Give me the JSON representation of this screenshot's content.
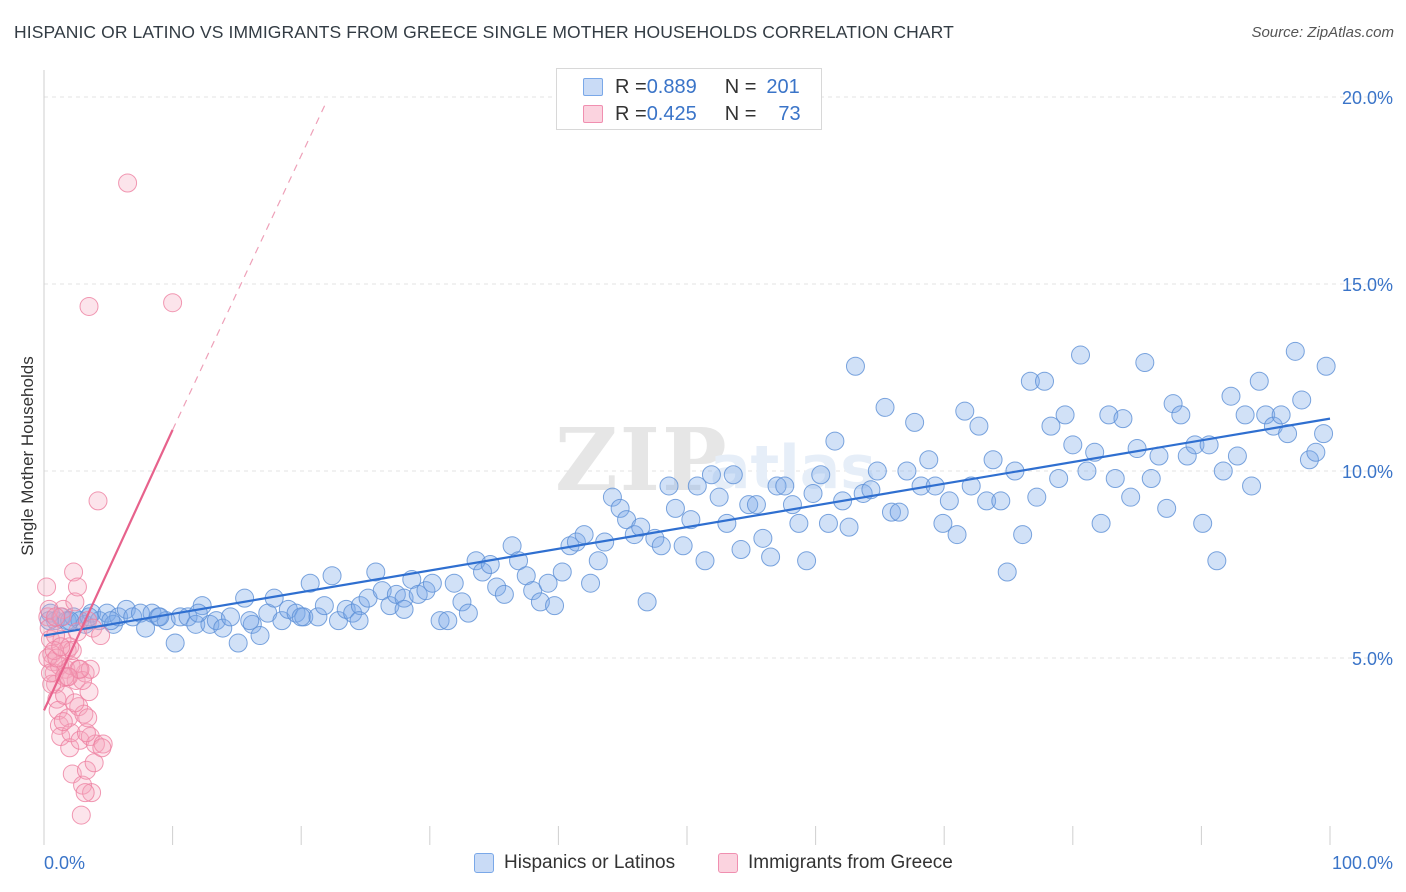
{
  "title": "HISPANIC OR LATINO VS IMMIGRANTS FROM GREECE SINGLE MOTHER HOUSEHOLDS CORRELATION CHART",
  "source": "Source: ZipAtlas.com",
  "watermark": "ZIPatlas",
  "legend": {
    "rows": [
      {
        "r_label": "R = ",
        "r_value": "0.889",
        "n_label": "N = ",
        "n_value": "201",
        "color": "#a9c6f0"
      },
      {
        "r_label": "R = ",
        "r_value": "0.425",
        "n_label": "N = ",
        "n_value": "73",
        "color": "#f5b5c8"
      }
    ]
  },
  "bottom_legend": {
    "items": [
      {
        "label": "Hispanics or Latinos",
        "color": "#a9c6f0"
      },
      {
        "label": "Immigrants from Greece",
        "color": "#f5b5c8"
      }
    ]
  },
  "chart_data": {
    "type": "scatter",
    "title": "HISPANIC OR LATINO VS IMMIGRANTS FROM GREECE SINGLE MOTHER HOUSEHOLDS CORRELATION CHART",
    "xlabel": "",
    "ylabel": "Single Mother Households",
    "xlim": [
      0,
      100
    ],
    "ylim": [
      0,
      20.5
    ],
    "x_tick_labels": [
      "0.0%",
      "100.0%"
    ],
    "y_ticks": [
      5,
      10,
      15,
      20
    ],
    "y_tick_labels": [
      "5.0%",
      "10.0%",
      "15.0%",
      "20.0%"
    ],
    "grid": true,
    "legend_position": "top-center",
    "series": [
      {
        "name": "Hispanics or Latinos",
        "color": "#7aa8e8",
        "stroke": "#5b8fd6",
        "trend": {
          "x": [
            0,
            100
          ],
          "y": [
            5.6,
            11.4
          ]
        },
        "points": [
          [
            0.5,
            6.2
          ],
          [
            0.9,
            6.0
          ],
          [
            1.3,
            6.1
          ],
          [
            1.8,
            6.0
          ],
          [
            2.3,
            6.1
          ],
          [
            2.8,
            6.0
          ],
          [
            3.2,
            5.9
          ],
          [
            3.7,
            6.2
          ],
          [
            4.3,
            6.0
          ],
          [
            4.9,
            6.2
          ],
          [
            5.4,
            5.9
          ],
          [
            5.8,
            6.1
          ],
          [
            6.4,
            6.3
          ],
          [
            6.9,
            6.1
          ],
          [
            7.5,
            6.2
          ],
          [
            7.9,
            5.8
          ],
          [
            8.4,
            6.2
          ],
          [
            8.9,
            6.1
          ],
          [
            9.5,
            6.0
          ],
          [
            10.2,
            5.4
          ],
          [
            10.6,
            6.1
          ],
          [
            11.2,
            6.1
          ],
          [
            11.8,
            5.9
          ],
          [
            12.3,
            6.4
          ],
          [
            12.9,
            5.9
          ],
          [
            13.4,
            6.0
          ],
          [
            13.9,
            5.8
          ],
          [
            14.5,
            6.1
          ],
          [
            15.1,
            5.4
          ],
          [
            15.6,
            6.6
          ],
          [
            16.2,
            5.9
          ],
          [
            16.8,
            5.6
          ],
          [
            17.4,
            6.2
          ],
          [
            17.9,
            6.6
          ],
          [
            18.5,
            6.0
          ],
          [
            19.0,
            6.3
          ],
          [
            19.6,
            6.2
          ],
          [
            20.2,
            6.1
          ],
          [
            20.7,
            7.0
          ],
          [
            21.3,
            6.1
          ],
          [
            21.8,
            6.4
          ],
          [
            22.4,
            7.2
          ],
          [
            22.9,
            6.0
          ],
          [
            23.5,
            6.3
          ],
          [
            24.0,
            6.2
          ],
          [
            24.6,
            6.4
          ],
          [
            25.2,
            6.6
          ],
          [
            25.8,
            7.3
          ],
          [
            26.3,
            6.8
          ],
          [
            26.9,
            6.4
          ],
          [
            27.4,
            6.7
          ],
          [
            28.0,
            6.6
          ],
          [
            28.6,
            7.1
          ],
          [
            29.1,
            6.7
          ],
          [
            29.7,
            6.8
          ],
          [
            30.2,
            7.0
          ],
          [
            30.8,
            6.0
          ],
          [
            31.4,
            6.0
          ],
          [
            31.9,
            7.0
          ],
          [
            32.5,
            6.5
          ],
          [
            33.0,
            6.2
          ],
          [
            33.6,
            7.6
          ],
          [
            34.1,
            7.3
          ],
          [
            34.7,
            7.5
          ],
          [
            35.2,
            6.9
          ],
          [
            35.8,
            6.7
          ],
          [
            36.4,
            8.0
          ],
          [
            36.9,
            7.6
          ],
          [
            37.5,
            7.2
          ],
          [
            38.0,
            6.8
          ],
          [
            38.6,
            6.5
          ],
          [
            39.2,
            7.0
          ],
          [
            39.7,
            6.4
          ],
          [
            40.3,
            7.3
          ],
          [
            40.9,
            8.0
          ],
          [
            41.4,
            8.1
          ],
          [
            42.0,
            8.3
          ],
          [
            42.5,
            7.0
          ],
          [
            43.1,
            7.6
          ],
          [
            43.6,
            8.1
          ],
          [
            44.2,
            9.3
          ],
          [
            44.8,
            9.0
          ],
          [
            45.3,
            8.7
          ],
          [
            45.9,
            8.3
          ],
          [
            46.4,
            8.5
          ],
          [
            46.9,
            6.5
          ],
          [
            47.5,
            8.2
          ],
          [
            48.0,
            8.0
          ],
          [
            48.6,
            9.6
          ],
          [
            49.1,
            9.0
          ],
          [
            49.7,
            8.0
          ],
          [
            50.3,
            8.7
          ],
          [
            50.8,
            9.6
          ],
          [
            51.4,
            7.6
          ],
          [
            51.9,
            9.9
          ],
          [
            52.5,
            9.3
          ],
          [
            53.1,
            8.6
          ],
          [
            53.6,
            9.9
          ],
          [
            54.2,
            7.9
          ],
          [
            54.8,
            9.1
          ],
          [
            55.4,
            9.1
          ],
          [
            55.9,
            8.2
          ],
          [
            56.5,
            7.7
          ],
          [
            57.0,
            9.6
          ],
          [
            57.6,
            9.6
          ],
          [
            58.2,
            9.1
          ],
          [
            58.7,
            8.6
          ],
          [
            59.3,
            7.6
          ],
          [
            59.8,
            9.4
          ],
          [
            60.4,
            9.9
          ],
          [
            61.0,
            8.6
          ],
          [
            61.5,
            10.8
          ],
          [
            62.1,
            9.2
          ],
          [
            62.6,
            8.5
          ],
          [
            63.1,
            12.8
          ],
          [
            63.7,
            9.4
          ],
          [
            64.3,
            9.5
          ],
          [
            64.8,
            10.0
          ],
          [
            65.4,
            11.7
          ],
          [
            65.9,
            8.9
          ],
          [
            66.5,
            8.9
          ],
          [
            67.1,
            10.0
          ],
          [
            67.7,
            11.3
          ],
          [
            68.2,
            9.6
          ],
          [
            68.8,
            10.3
          ],
          [
            69.3,
            9.6
          ],
          [
            69.9,
            8.6
          ],
          [
            70.4,
            9.2
          ],
          [
            71.0,
            8.3
          ],
          [
            71.6,
            11.6
          ],
          [
            72.1,
            9.6
          ],
          [
            72.7,
            11.2
          ],
          [
            73.3,
            9.2
          ],
          [
            73.8,
            10.3
          ],
          [
            74.4,
            9.2
          ],
          [
            74.9,
            7.3
          ],
          [
            75.5,
            10.0
          ],
          [
            76.1,
            8.3
          ],
          [
            76.7,
            12.4
          ],
          [
            77.2,
            9.3
          ],
          [
            77.8,
            12.4
          ],
          [
            78.3,
            11.2
          ],
          [
            78.9,
            9.8
          ],
          [
            79.4,
            11.5
          ],
          [
            80.0,
            10.7
          ],
          [
            80.6,
            13.1
          ],
          [
            81.1,
            10.0
          ],
          [
            81.7,
            10.5
          ],
          [
            82.2,
            8.6
          ],
          [
            82.8,
            11.5
          ],
          [
            83.3,
            9.8
          ],
          [
            83.9,
            11.4
          ],
          [
            84.5,
            9.3
          ],
          [
            85.0,
            10.6
          ],
          [
            85.6,
            12.9
          ],
          [
            86.1,
            9.8
          ],
          [
            86.7,
            10.4
          ],
          [
            87.3,
            9.0
          ],
          [
            87.8,
            11.8
          ],
          [
            88.4,
            11.5
          ],
          [
            88.9,
            10.4
          ],
          [
            89.5,
            10.7
          ],
          [
            90.1,
            8.6
          ],
          [
            90.6,
            10.7
          ],
          [
            91.2,
            7.6
          ],
          [
            91.7,
            10.0
          ],
          [
            92.3,
            12.0
          ],
          [
            92.8,
            10.4
          ],
          [
            93.4,
            11.5
          ],
          [
            93.9,
            9.6
          ],
          [
            94.5,
            12.4
          ],
          [
            95.0,
            11.5
          ],
          [
            95.6,
            11.2
          ],
          [
            96.2,
            11.5
          ],
          [
            96.7,
            11.0
          ],
          [
            97.3,
            13.2
          ],
          [
            97.8,
            11.9
          ],
          [
            98.4,
            10.3
          ],
          [
            98.9,
            10.5
          ],
          [
            99.5,
            11.0
          ],
          [
            0.4,
            6.0
          ],
          [
            2.0,
            6.0
          ],
          [
            3.5,
            6.1
          ],
          [
            5.2,
            6.0
          ],
          [
            9.0,
            6.1
          ],
          [
            12.0,
            6.2
          ],
          [
            16.0,
            6.0
          ],
          [
            20.0,
            6.1
          ],
          [
            24.5,
            6.0
          ],
          [
            28.0,
            6.3
          ],
          [
            99.7,
            12.8
          ]
        ]
      },
      {
        "name": "Immigrants from Greece",
        "color": "#f5a5bd",
        "stroke": "#ee7fa0",
        "trend": {
          "x": [
            0,
            10
          ],
          "y": [
            3.6,
            11.1
          ]
        },
        "trend_dashed": {
          "x": [
            10,
            22
          ],
          "y": [
            11.1,
            19.9
          ]
        },
        "points": [
          [
            0.2,
            6.9
          ],
          [
            0.3,
            6.1
          ],
          [
            0.4,
            5.8
          ],
          [
            0.5,
            5.5
          ],
          [
            0.6,
            5.1
          ],
          [
            0.7,
            4.9
          ],
          [
            0.8,
            4.6
          ],
          [
            0.9,
            4.3
          ],
          [
            1.0,
            3.9
          ],
          [
            1.1,
            3.6
          ],
          [
            1.2,
            3.2
          ],
          [
            1.3,
            2.9
          ],
          [
            1.4,
            5.5
          ],
          [
            1.5,
            6.3
          ],
          [
            1.6,
            4.0
          ],
          [
            1.7,
            4.7
          ],
          [
            1.8,
            5.2
          ],
          [
            1.9,
            3.4
          ],
          [
            2.0,
            2.6
          ],
          [
            2.1,
            3.0
          ],
          [
            2.2,
            1.9
          ],
          [
            2.3,
            7.3
          ],
          [
            2.4,
            6.5
          ],
          [
            2.5,
            4.4
          ],
          [
            2.6,
            5.7
          ],
          [
            2.7,
            3.7
          ],
          [
            2.8,
            2.8
          ],
          [
            2.9,
            0.8
          ],
          [
            3.0,
            1.6
          ],
          [
            3.1,
            3.5
          ],
          [
            3.2,
            4.6
          ],
          [
            3.3,
            2.0
          ],
          [
            3.4,
            6.0
          ],
          [
            3.5,
            4.1
          ],
          [
            3.6,
            2.9
          ],
          [
            3.7,
            1.4
          ],
          [
            3.8,
            5.8
          ],
          [
            3.9,
            2.2
          ],
          [
            4.0,
            2.7
          ],
          [
            4.2,
            9.2
          ],
          [
            4.4,
            5.6
          ],
          [
            4.6,
            2.7
          ],
          [
            0.3,
            5.0
          ],
          [
            0.6,
            4.3
          ],
          [
            0.9,
            5.6
          ],
          [
            1.2,
            4.8
          ],
          [
            1.5,
            3.3
          ],
          [
            1.8,
            4.5
          ],
          [
            2.1,
            4.8
          ],
          [
            2.4,
            3.8
          ],
          [
            2.7,
            4.7
          ],
          [
            3.0,
            4.4
          ],
          [
            3.3,
            3.0
          ],
          [
            0.4,
            6.3
          ],
          [
            0.8,
            5.2
          ],
          [
            1.4,
            6.1
          ],
          [
            2.0,
            5.3
          ],
          [
            2.6,
            6.9
          ],
          [
            3.2,
            1.4
          ],
          [
            3.6,
            4.7
          ],
          [
            0.5,
            4.6
          ],
          [
            1.0,
            5.0
          ],
          [
            1.6,
            4.5
          ],
          [
            2.2,
            5.2
          ],
          [
            2.8,
            4.7
          ],
          [
            1.3,
            5.3
          ],
          [
            3.4,
            3.4
          ],
          [
            4.5,
            2.6
          ],
          [
            6.5,
            17.7
          ],
          [
            3.5,
            14.4
          ],
          [
            10.0,
            14.5
          ],
          [
            0.9,
            6.1
          ],
          [
            1.9,
            4.5
          ]
        ]
      }
    ]
  }
}
